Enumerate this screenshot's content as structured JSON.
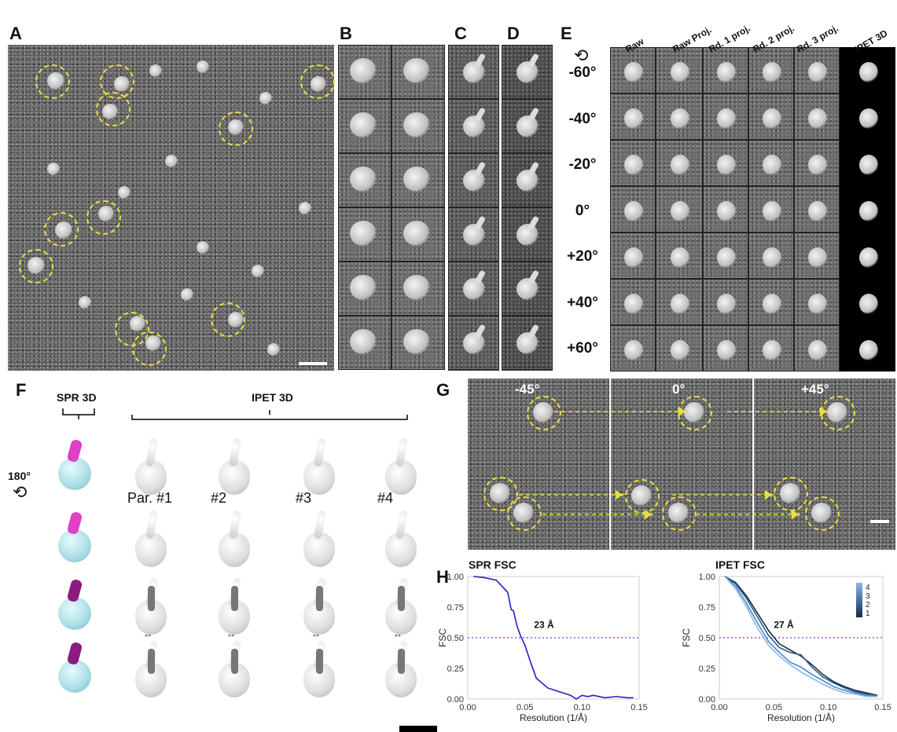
{
  "panel_letters": {
    "a": "A",
    "b": "B",
    "c": "C",
    "d": "D",
    "e": "E",
    "f": "F",
    "g": "G",
    "h": "H"
  },
  "panel_e": {
    "column_headers": [
      "Raw",
      "Raw Proj.",
      "Rd. 1 proj.",
      "Rd. 2 proj.",
      "Rd. 3 proj.",
      "IPET 3D"
    ],
    "tilt_angles": [
      "-60°",
      "-40°",
      "-20°",
      "0°",
      "+20°",
      "+40°",
      "+60°"
    ]
  },
  "panel_f": {
    "spr_label": "SPR 3D",
    "ipet_label": "IPET 3D",
    "rotation_label": "180°",
    "model_labels": [
      "Par. #1",
      "#2",
      "#3",
      "#4"
    ]
  },
  "panel_g": {
    "angles": [
      "-45°",
      "0°",
      "+45°"
    ]
  },
  "chart_data": [
    {
      "type": "line",
      "title": "SPR FSC",
      "xlabel": "Resolution (1/Å)",
      "ylabel": "FSC",
      "xlim": [
        0,
        0.15
      ],
      "ylim": [
        0,
        1.0
      ],
      "xticks": [
        "0.00",
        "0.05",
        "0.10",
        "0.15"
      ],
      "yticks": [
        "0.00",
        "0.25",
        "0.50",
        "0.75",
        "1.00"
      ],
      "threshold": 0.5,
      "annotation": "23 Å",
      "series": [
        {
          "color": "#1f1fd0",
          "x": [
            0.005,
            0.015,
            0.025,
            0.03,
            0.035,
            0.038,
            0.04,
            0.043,
            0.046,
            0.05,
            0.055,
            0.06,
            0.07,
            0.08,
            0.09,
            0.095,
            0.1,
            0.105,
            0.11,
            0.12,
            0.13,
            0.14,
            0.145
          ],
          "y": [
            1.0,
            0.99,
            0.97,
            0.92,
            0.87,
            0.73,
            0.72,
            0.6,
            0.52,
            0.44,
            0.3,
            0.17,
            0.09,
            0.06,
            0.03,
            0.0,
            0.03,
            0.02,
            0.03,
            0.01,
            0.02,
            0.01,
            0.01
          ]
        }
      ]
    },
    {
      "type": "line",
      "title": "IPET FSC",
      "xlabel": "Resolution (1/Å)",
      "ylabel": "FSC",
      "xlim": [
        0,
        0.15
      ],
      "ylim": [
        0,
        1.0
      ],
      "xticks": [
        "0.00",
        "0.05",
        "0.10",
        "0.15"
      ],
      "yticks": [
        "0.00",
        "0.25",
        "0.50",
        "0.75",
        "1.00"
      ],
      "threshold": 0.5,
      "annotation": "27 Å",
      "legend": [
        "4",
        "3",
        "2",
        "1"
      ],
      "series": [
        {
          "name": "1",
          "color": "#13294b",
          "x": [
            0.005,
            0.015,
            0.025,
            0.035,
            0.045,
            0.055,
            0.065,
            0.075,
            0.085,
            0.095,
            0.105,
            0.115,
            0.125,
            0.135,
            0.145
          ],
          "y": [
            1.0,
            0.95,
            0.84,
            0.7,
            0.56,
            0.45,
            0.4,
            0.35,
            0.28,
            0.2,
            0.14,
            0.1,
            0.07,
            0.05,
            0.03
          ]
        },
        {
          "name": "2",
          "color": "#2b5d8c",
          "x": [
            0.005,
            0.015,
            0.025,
            0.035,
            0.045,
            0.055,
            0.065,
            0.075,
            0.085,
            0.095,
            0.105,
            0.115,
            0.125,
            0.135,
            0.145
          ],
          "y": [
            1.0,
            0.94,
            0.82,
            0.67,
            0.52,
            0.42,
            0.38,
            0.36,
            0.26,
            0.18,
            0.13,
            0.09,
            0.06,
            0.04,
            0.03
          ]
        },
        {
          "name": "3",
          "color": "#4a86c5",
          "x": [
            0.005,
            0.015,
            0.025,
            0.035,
            0.045,
            0.055,
            0.065,
            0.075,
            0.085,
            0.095,
            0.105,
            0.115,
            0.125,
            0.135,
            0.145
          ],
          "y": [
            1.0,
            0.92,
            0.78,
            0.62,
            0.47,
            0.38,
            0.3,
            0.26,
            0.2,
            0.15,
            0.1,
            0.07,
            0.05,
            0.03,
            0.02
          ]
        },
        {
          "name": "4",
          "color": "#8ab6e6",
          "x": [
            0.005,
            0.015,
            0.025,
            0.035,
            0.045,
            0.055,
            0.065,
            0.075,
            0.085,
            0.095,
            0.105,
            0.115,
            0.125,
            0.135,
            0.145
          ],
          "y": [
            1.0,
            0.9,
            0.75,
            0.58,
            0.44,
            0.35,
            0.28,
            0.22,
            0.17,
            0.12,
            0.08,
            0.05,
            0.04,
            0.02,
            0.02
          ]
        }
      ]
    }
  ]
}
